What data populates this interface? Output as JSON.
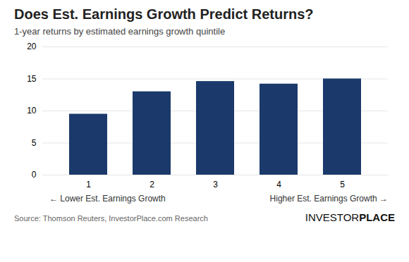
{
  "chart_data": {
    "type": "bar",
    "title": "Does Est. Earnings Growth Predict Returns?",
    "subtitle": "1-year returns by estimated earnings growth quintile",
    "categories": [
      1,
      2,
      3,
      4,
      5
    ],
    "values": [
      9.5,
      13.0,
      14.6,
      14.2,
      15.0
    ],
    "color": "#1b3a6b",
    "ylim": [
      0,
      20
    ],
    "yticks": [
      0,
      5,
      10,
      15,
      20
    ],
    "grid": true,
    "annotations": [
      "← Lower Est. Earnings Growth",
      "Higher Est. Earnings Growth →",
      "Source: Thomson Reuters, InvestorPlace.com Research",
      "INVESTOR",
      "PLACE"
    ]
  }
}
